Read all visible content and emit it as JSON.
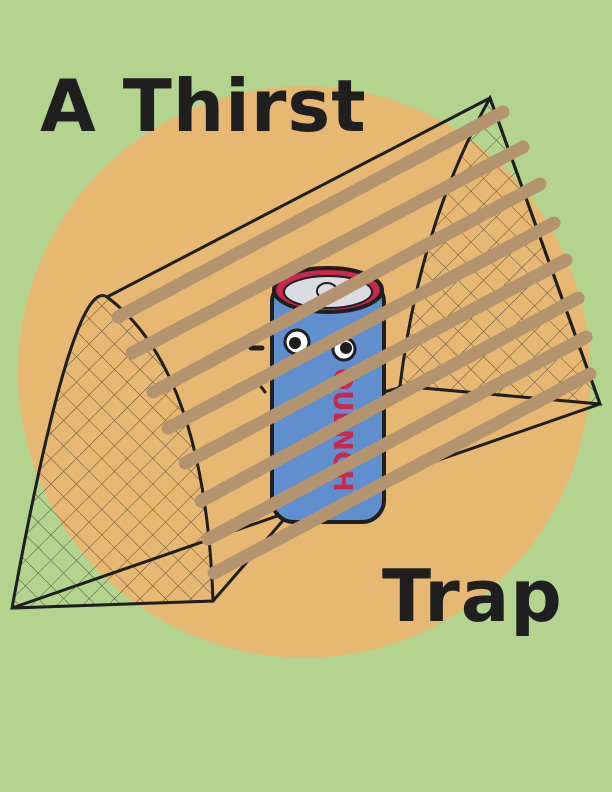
{
  "poster": {
    "title_line_1": "A Thirst",
    "title_line_2": "Trap",
    "can_brand": "QUENCH"
  },
  "colors": {
    "background": "#b3d48f",
    "sun_circle": "#e7b872",
    "can_body": "#5f8fcf",
    "can_rim": "#c9274b",
    "can_lid": "#d9dde3",
    "trap_bars": "#b4946f",
    "outline": "#1f1f1f"
  },
  "icons": [
    "can-icon",
    "trap-icon",
    "net-icon"
  ]
}
